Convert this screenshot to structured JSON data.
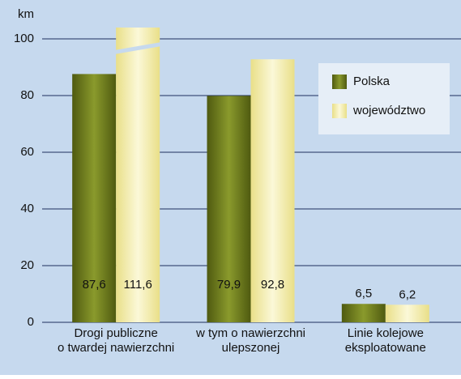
{
  "chart_data": {
    "type": "bar",
    "y_label": "km",
    "categories": [
      "Drogi publiczne\no twardej nawierzchni",
      "w tym o nawierzchni\nulepszonej",
      "Linie kolejowe\neksploatowane"
    ],
    "series": [
      {
        "name": "Polska",
        "color": "#6f7d1f",
        "values": [
          87.6,
          79.9,
          6.5
        ],
        "value_labels": [
          "87,6",
          "79,9",
          "6,5"
        ]
      },
      {
        "name": "województwo",
        "color": "#f4eda6",
        "values": [
          111.6,
          92.8,
          6.2
        ],
        "value_labels": [
          "111,6",
          "92,8",
          "6,2"
        ]
      }
    ],
    "ylim": [
      0,
      104
    ],
    "yticks": [
      0,
      20,
      40,
      60,
      80,
      100
    ],
    "grid": true,
    "legend": "upper right"
  }
}
